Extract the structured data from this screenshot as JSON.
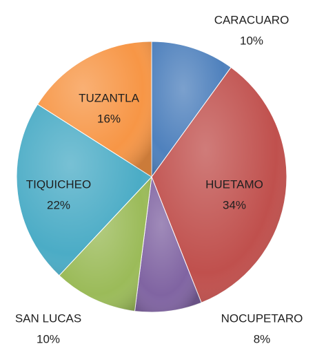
{
  "chart_data": {
    "type": "pie",
    "categories": [
      "CARACUARO",
      "HUETAMO",
      "NOCUPETARO",
      "SAN LUCAS",
      "TIQUICHEO",
      "TUZANTLA"
    ],
    "values": [
      10,
      34,
      8,
      10,
      22,
      16
    ],
    "value_labels": [
      "10%",
      "34%",
      "8%",
      "10%",
      "22%",
      "16%"
    ],
    "colors": [
      "#4f81bd",
      "#c0504d",
      "#8064a2",
      "#9bbb59",
      "#4bacc6",
      "#f79646"
    ]
  }
}
